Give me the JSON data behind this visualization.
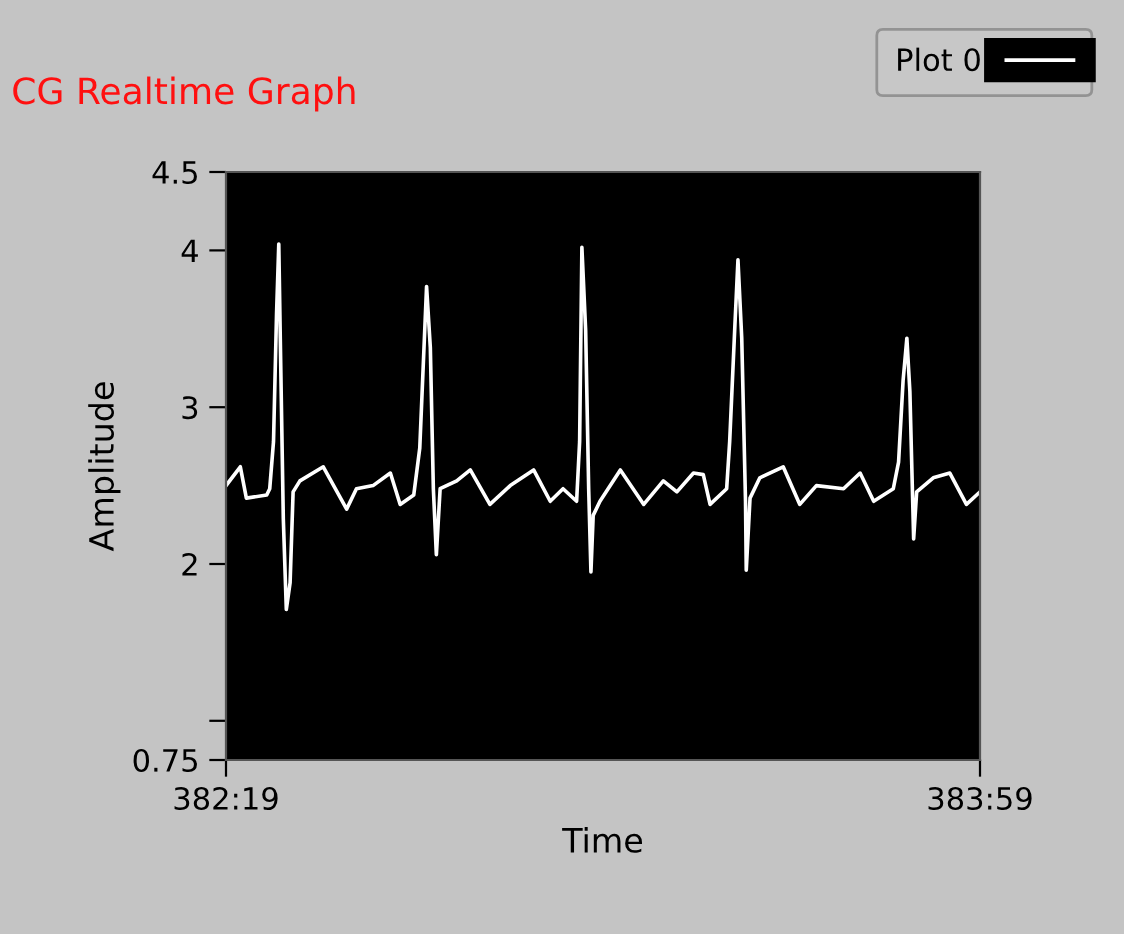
{
  "chart_data": {
    "type": "line",
    "title": "CG Realtime Graph",
    "xlabel": "Time",
    "ylabel": "Amplitude",
    "xlim": [
      22939,
      23039
    ],
    "xticks": [
      {
        "value": 22939,
        "label": "382:19"
      },
      {
        "value": 23039,
        "label": "383:59"
      }
    ],
    "ylim": [
      0.75,
      4.5
    ],
    "yticks": [
      0.75,
      {
        "value": 1,
        "label": null
      },
      2,
      3,
      4,
      4.5
    ],
    "grid": false,
    "legend": "top right",
    "marker": "none",
    "line_style": "solid",
    "series": [
      {
        "name": "Plot 0",
        "color": "#ffffff",
        "x": [
          22939,
          22940.9,
          22941.7,
          22944.4,
          22944.8,
          22945.3,
          22945.7,
          22946.0,
          22946.2,
          22946.6,
          22947.0,
          22947.5,
          22947.9,
          22948.8,
          22951.9,
          22955.0,
          22956.3,
          22958.5,
          22960.8,
          22962.1,
          22963.9,
          22964.7,
          22965.6,
          22966.1,
          22966.5,
          22966.9,
          22967.4,
          22969.6,
          22971.4,
          22974.0,
          22976.7,
          22979.8,
          22982.0,
          22983.7,
          22985.5,
          22985.9,
          22986.2,
          22986.7,
          22987.1,
          22987.4,
          22987.7,
          22988.6,
          22991.3,
          22994.4,
          22997.0,
          22998.8,
          23001.0,
          23002.3,
          23003.2,
          23005.4,
          23005.8,
          23006.5,
          23006.9,
          23007.4,
          23007.9,
          23008.0,
          23008.5,
          23009.8,
          23012.9,
          23015.1,
          23017.3,
          23020.9,
          23023.1,
          23024.9,
          23027.5,
          23028.2,
          23028.8,
          23029.3,
          23029.7,
          23030.2,
          23030.6,
          23032.8,
          23035.0,
          23037.2,
          23039
        ],
        "values": [
          2.5,
          2.62,
          2.42,
          2.44,
          2.48,
          2.78,
          3.59,
          4.04,
          3.44,
          2.29,
          1.71,
          1.88,
          2.46,
          2.53,
          2.62,
          2.35,
          2.48,
          2.5,
          2.58,
          2.38,
          2.44,
          2.74,
          3.77,
          3.38,
          2.48,
          2.06,
          2.48,
          2.53,
          2.6,
          2.38,
          2.5,
          2.6,
          2.4,
          2.48,
          2.4,
          2.78,
          4.02,
          3.49,
          2.48,
          1.95,
          2.31,
          2.4,
          2.6,
          2.38,
          2.53,
          2.46,
          2.58,
          2.57,
          2.38,
          2.48,
          2.78,
          3.53,
          3.94,
          3.44,
          2.4,
          1.96,
          2.42,
          2.55,
          2.62,
          2.38,
          2.5,
          2.48,
          2.58,
          2.4,
          2.48,
          2.65,
          3.17,
          3.44,
          3.1,
          2.16,
          2.46,
          2.55,
          2.58,
          2.38,
          2.46
        ]
      }
    ]
  }
}
